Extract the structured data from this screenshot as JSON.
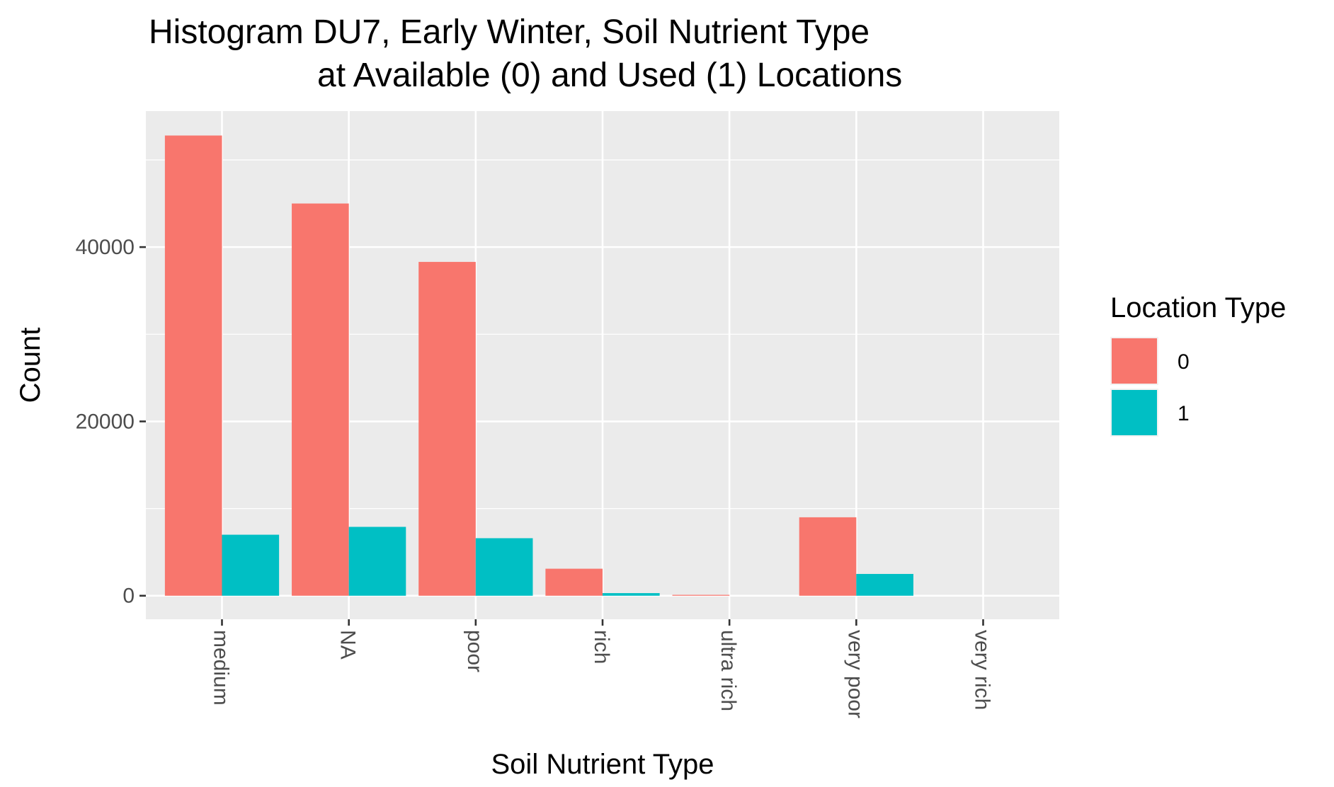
{
  "chart_data": {
    "type": "bar",
    "title_line1": "Histogram DU7, Early Winter, Soil Nutrient Type",
    "title_line2": "at Available (0) and Used (1) Locations",
    "xlabel": "Soil Nutrient Type",
    "ylabel": "Count",
    "categories": [
      "medium",
      "NA",
      "poor",
      "rich",
      "ultra rich",
      "very poor",
      "very rich"
    ],
    "series": [
      {
        "name": "0",
        "color": "#F8766D",
        "values": [
          52800,
          45000,
          38300,
          3100,
          100,
          9000,
          0
        ]
      },
      {
        "name": "1",
        "color": "#00BFC4",
        "values": [
          7000,
          7900,
          6600,
          300,
          0,
          2500,
          0
        ]
      }
    ],
    "yticks": [
      0,
      20000,
      40000
    ],
    "ylim": [
      -2700,
      55600
    ],
    "grid": true,
    "legend": {
      "title": "Location Type",
      "placement": "right"
    },
    "panel_background": "#EBEBEB",
    "grid_color": "#FFFFFF"
  }
}
